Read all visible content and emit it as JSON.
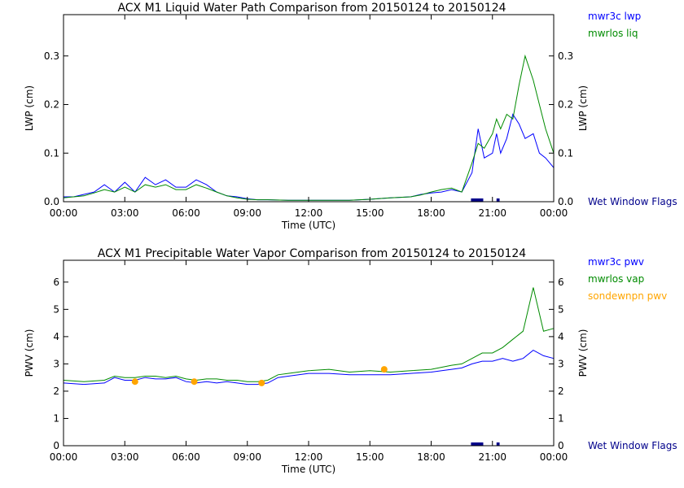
{
  "chart_data": [
    {
      "type": "line",
      "title": "ACX M1 Liquid Water Path Comparison from 20150124 to 20150124",
      "xlabel": "Time (UTC)",
      "ylabel": "LWP (cm)",
      "ylabel_right": "LWP (cm)",
      "xlim": [
        0,
        24
      ],
      "ylim": [
        0,
        0.385
      ],
      "x_ticks": [
        "00:00",
        "03:00",
        "06:00",
        "09:00",
        "12:00",
        "15:00",
        "18:00",
        "21:00",
        "00:00"
      ],
      "y_ticks": [
        "0.0",
        "0.1",
        "0.2",
        "0.3"
      ],
      "legend": [
        {
          "label": "mwr3c lwp",
          "color": "#0000ff"
        },
        {
          "label": "mwrlos liq",
          "color": "#008b00"
        }
      ],
      "flag_label": "Wet Window Flags",
      "flag_color": "#00008b",
      "flags": [
        [
          19.95,
          20.55
        ],
        [
          21.2,
          21.35
        ]
      ],
      "series": [
        {
          "name": "mwr3c lwp",
          "color": "#0000ff",
          "x": [
            0,
            0.5,
            1,
            1.5,
            2,
            2.5,
            3,
            3.5,
            4,
            4.5,
            5,
            5.5,
            6,
            6.5,
            7,
            7.5,
            8,
            8.5,
            9,
            9.5,
            10,
            11,
            12,
            13,
            14,
            15,
            16,
            17,
            17.5,
            18,
            18.5,
            19,
            19.5,
            20,
            20.3,
            20.6,
            21,
            21.2,
            21.4,
            21.7,
            22,
            22.3,
            22.6,
            23,
            23.3,
            23.6,
            24
          ],
          "y": [
            0.01,
            0.01,
            0.015,
            0.02,
            0.035,
            0.02,
            0.04,
            0.02,
            0.05,
            0.035,
            0.045,
            0.03,
            0.03,
            0.045,
            0.035,
            0.02,
            0.012,
            0.01,
            0.006,
            0.004,
            0.004,
            0.003,
            0.003,
            0.003,
            0.003,
            0.005,
            0.008,
            0.01,
            0.015,
            0.018,
            0.02,
            0.025,
            0.02,
            0.06,
            0.15,
            0.09,
            0.1,
            0.14,
            0.1,
            0.13,
            0.18,
            0.16,
            0.13,
            0.14,
            0.1,
            0.09,
            0.07
          ]
        },
        {
          "name": "mwrlos liq",
          "color": "#008b00",
          "x": [
            0,
            0.5,
            1,
            1.5,
            2,
            2.5,
            3,
            3.5,
            4,
            4.5,
            5,
            5.5,
            6,
            6.5,
            7,
            7.5,
            8,
            8.5,
            9,
            9.5,
            10,
            11,
            12,
            13,
            14,
            15,
            16,
            17,
            17.5,
            18,
            18.5,
            19,
            19.5,
            20,
            20.3,
            20.6,
            21,
            21.2,
            21.4,
            21.7,
            22,
            22.3,
            22.6,
            23,
            23.3,
            23.6,
            24
          ],
          "y": [
            0.008,
            0.01,
            0.012,
            0.018,
            0.025,
            0.02,
            0.03,
            0.02,
            0.035,
            0.03,
            0.035,
            0.025,
            0.025,
            0.035,
            0.028,
            0.02,
            0.012,
            0.008,
            0.005,
            0.004,
            0.004,
            0.003,
            0.003,
            0.003,
            0.003,
            0.005,
            0.008,
            0.01,
            0.014,
            0.02,
            0.025,
            0.028,
            0.02,
            0.08,
            0.12,
            0.11,
            0.14,
            0.17,
            0.15,
            0.18,
            0.17,
            0.24,
            0.3,
            0.25,
            0.2,
            0.15,
            0.1
          ]
        }
      ]
    },
    {
      "type": "line",
      "title": "ACX M1 Precipitable Water Vapor Comparison from 20150124 to 20150124",
      "xlabel": "Time (UTC)",
      "ylabel": "PWV (cm)",
      "ylabel_right": "PWV (cm)",
      "xlim": [
        0,
        24
      ],
      "ylim": [
        0,
        6.8
      ],
      "x_ticks": [
        "00:00",
        "03:00",
        "06:00",
        "09:00",
        "12:00",
        "15:00",
        "18:00",
        "21:00",
        "00:00"
      ],
      "y_ticks": [
        "0",
        "1",
        "2",
        "3",
        "4",
        "5",
        "6"
      ],
      "legend": [
        {
          "label": "mwr3c pwv",
          "color": "#0000ff"
        },
        {
          "label": "mwrlos vap",
          "color": "#008b00"
        },
        {
          "label": "sondewnpn pwv",
          "color": "#ffa500"
        }
      ],
      "flag_label": "Wet Window Flags",
      "flag_color": "#00008b",
      "flags": [
        [
          19.95,
          20.55
        ],
        [
          21.2,
          21.35
        ]
      ],
      "series": [
        {
          "name": "mwr3c pwv",
          "color": "#0000ff",
          "x": [
            0,
            1,
            2,
            2.5,
            3,
            3.5,
            4,
            4.5,
            5,
            5.5,
            6,
            6.5,
            7,
            7.5,
            8,
            8.5,
            9,
            9.5,
            10,
            10.5,
            11,
            12,
            13,
            14,
            15,
            16,
            17,
            18,
            19,
            19.5,
            20,
            20.5,
            21,
            21.5,
            22,
            22.5,
            23,
            23.5,
            24
          ],
          "y": [
            2.3,
            2.25,
            2.3,
            2.5,
            2.4,
            2.4,
            2.5,
            2.45,
            2.45,
            2.5,
            2.35,
            2.3,
            2.35,
            2.3,
            2.35,
            2.3,
            2.25,
            2.25,
            2.3,
            2.5,
            2.55,
            2.65,
            2.65,
            2.6,
            2.6,
            2.6,
            2.65,
            2.7,
            2.8,
            2.85,
            3.0,
            3.1,
            3.1,
            3.2,
            3.1,
            3.2,
            3.5,
            3.3,
            3.2
          ]
        },
        {
          "name": "mwrlos vap",
          "color": "#008b00",
          "x": [
            0,
            1,
            2,
            2.5,
            3,
            3.5,
            4,
            4.5,
            5,
            5.5,
            6,
            6.5,
            7,
            7.5,
            8,
            8.5,
            9,
            9.5,
            10,
            10.5,
            11,
            12,
            13,
            14,
            15,
            16,
            17,
            18,
            19,
            19.5,
            20,
            20.5,
            21,
            21.5,
            22,
            22.5,
            23,
            23.5,
            24
          ],
          "y": [
            2.4,
            2.35,
            2.4,
            2.55,
            2.5,
            2.5,
            2.55,
            2.55,
            2.5,
            2.55,
            2.45,
            2.4,
            2.45,
            2.45,
            2.4,
            2.4,
            2.35,
            2.35,
            2.4,
            2.6,
            2.65,
            2.75,
            2.8,
            2.7,
            2.75,
            2.7,
            2.75,
            2.8,
            2.95,
            3.0,
            3.2,
            3.4,
            3.4,
            3.6,
            3.9,
            4.2,
            5.8,
            4.2,
            4.3
          ]
        },
        {
          "name": "sondewnpn pwv",
          "color": "#ffa500",
          "style": "markers",
          "x": [
            3.5,
            6.4,
            9.7,
            15.7
          ],
          "y": [
            2.35,
            2.35,
            2.3,
            2.8
          ]
        }
      ]
    }
  ]
}
